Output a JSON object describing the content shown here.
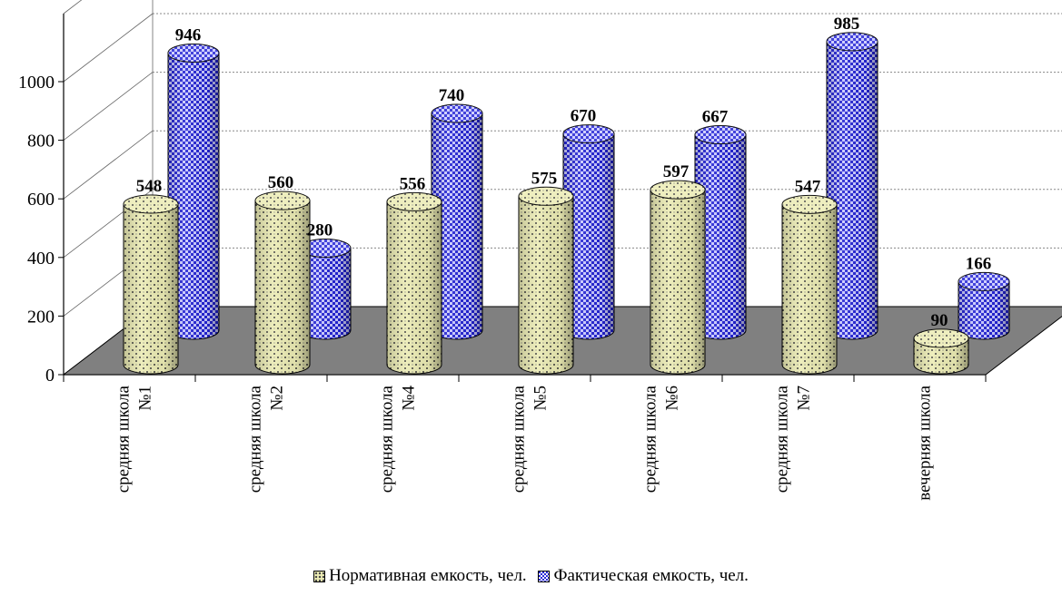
{
  "chart_data": {
    "type": "bar",
    "title": "",
    "xlabel": "",
    "ylabel": "",
    "ylim": [
      0,
      1000
    ],
    "yticks": [
      0,
      200,
      400,
      600,
      800,
      1000
    ],
    "grid": true,
    "legend_position": "bottom",
    "categories": [
      "средняя школа №1",
      "средняя школа №2",
      "средняя школа №4",
      "средняя школа №5",
      "средняя школа №6",
      "средняя школа №7",
      "вечерняя школа"
    ],
    "series": [
      {
        "name": "Нормативная емкость, чел.",
        "values": [
          548,
          560,
          556,
          575,
          597,
          547,
          90
        ],
        "color": "#ececb4"
      },
      {
        "name": "Фактическая емкость, чел.",
        "values": [
          946,
          280,
          740,
          670,
          667,
          985,
          166
        ],
        "color": "#2a2ad8"
      }
    ]
  },
  "colors": {
    "floor": "#808080",
    "norm_fill": "#ececb4",
    "fact_fill": "#2a2ad8"
  }
}
